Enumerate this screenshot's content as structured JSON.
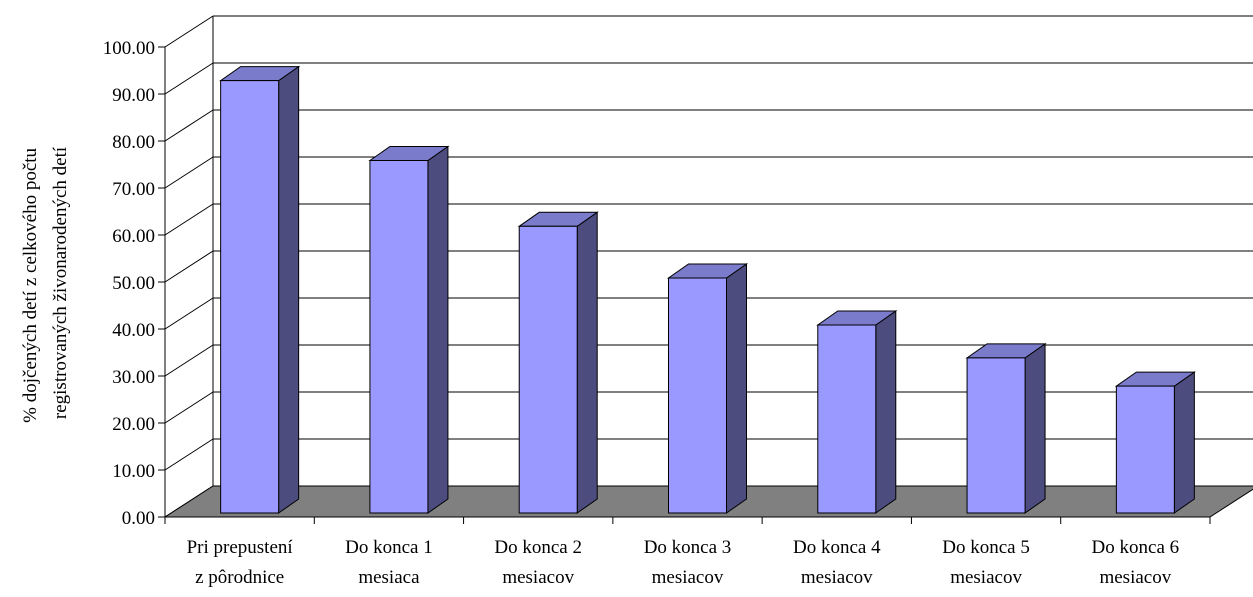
{
  "chart_data": {
    "type": "bar",
    "title": "",
    "xlabel": "",
    "ylabel": "% dojčených detí z celkového počtu registrovaných živonarodených detí",
    "ylabel_lines": [
      "% dojčených detí z celkového počtu",
      "registrovaných živonarodených detí"
    ],
    "categories": [
      [
        "Pri prepustení",
        "z pôrodnice"
      ],
      [
        "Do konca 1",
        "mesiaca"
      ],
      [
        "Do konca 2",
        "mesiacov"
      ],
      [
        "Do konca 3",
        "mesiacov"
      ],
      [
        "Do konca 4",
        "mesiacov"
      ],
      [
        "Do konca 5",
        "mesiacov"
      ],
      [
        "Do konca 6",
        "mesiacov"
      ]
    ],
    "values": [
      92.0,
      75.0,
      61.0,
      50.0,
      40.0,
      33.0,
      27.0
    ],
    "ylim": [
      0,
      100
    ],
    "yticks": [
      "0.00",
      "10.00",
      "20.00",
      "30.00",
      "40.00",
      "50.00",
      "60.00",
      "70.00",
      "80.00",
      "90.00",
      "100.00"
    ],
    "grid": true,
    "legend": "none",
    "colors": {
      "bar_front": "#9999ff",
      "bar_side": "#4c4c7f",
      "bar_top": "#7b7bcc",
      "floor": "#808080",
      "grid": "#000000"
    }
  }
}
